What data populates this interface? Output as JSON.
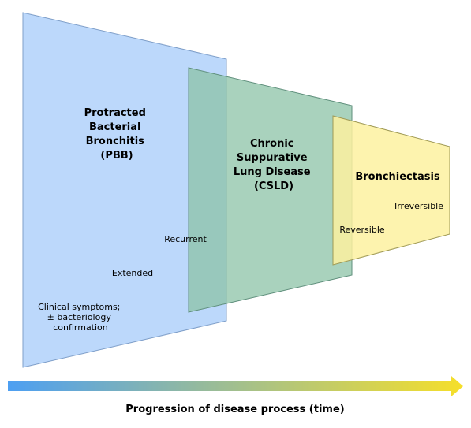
{
  "stages": [
    {
      "id": "pbb",
      "name_lines": [
        "Protracted",
        "Bacterial",
        "Bronchitis",
        "(PBB)"
      ],
      "color": "#b8d6fb"
    },
    {
      "id": "csld",
      "name_lines": [
        "Chronic",
        "Suppurative",
        "Lung Disease",
        "(CSLD)"
      ],
      "color": "#8cc3a7"
    },
    {
      "id": "bronchiectasis",
      "name_lines": [
        "Bronchiectasis"
      ],
      "color": "#fdf1a0"
    }
  ],
  "annotations": {
    "clinical_lines": [
      "Clinical symptoms;",
      "± bacteriology",
      "confirmation"
    ],
    "extended": "Extended",
    "recurrent": "Recurrent",
    "reversible": "Reversible",
    "irreversible": "Irreversible"
  },
  "timeline": {
    "label": "Progression of disease process (time)",
    "gradient_start": "#4d9ff2",
    "gradient_end": "#f6df2a"
  }
}
